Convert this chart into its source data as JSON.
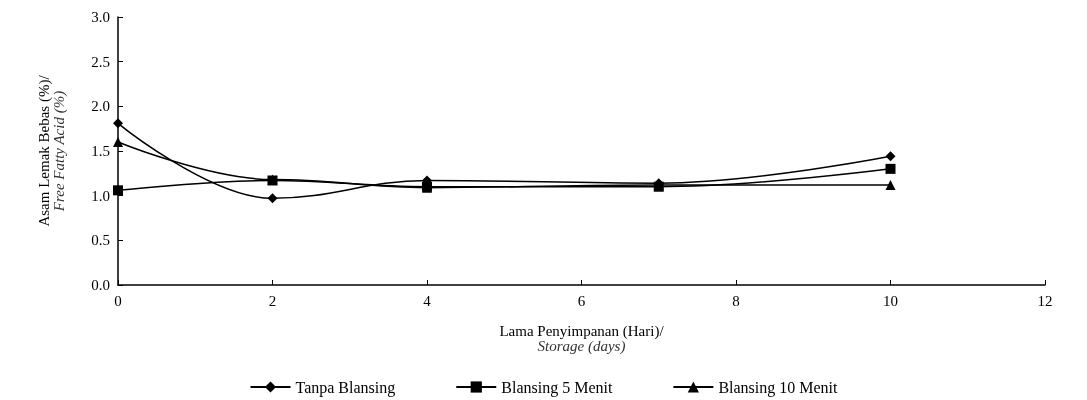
{
  "chart_data": {
    "type": "line",
    "xlabel": "Lama Penyimpanan (Hari)/\nStorage (days)",
    "ylabel": "Asam Lemak Bebas (%)/\nFree Fatty Acid (%)",
    "x": [
      0,
      2,
      4,
      7,
      10
    ],
    "series": [
      {
        "name": "Tanpa Blansing",
        "color": "#000000",
        "marker": "diamond",
        "values": [
          1.81,
          0.97,
          1.17,
          1.14,
          1.44
        ]
      },
      {
        "name": "Blansing 5 Menit",
        "color": "#000000",
        "marker": "square",
        "values": [
          1.06,
          1.17,
          1.1,
          1.1,
          1.3
        ]
      },
      {
        "name": "Blansing 10 Menit",
        "color": "#000000",
        "marker": "triangle",
        "values": [
          1.6,
          1.18,
          1.09,
          1.12,
          1.12
        ]
      }
    ],
    "xlim": [
      0,
      12
    ],
    "xticks": [
      0,
      2,
      4,
      6,
      8,
      10,
      12
    ],
    "ylim": [
      0,
      3
    ],
    "yticks": [
      {
        "value": 0,
        "label": "0.0"
      },
      {
        "value": 0.5,
        "label": "0.5"
      },
      {
        "value": 1,
        "label": "1.0"
      },
      {
        "value": 1.5,
        "label": "1.5"
      },
      {
        "value": 2,
        "label": "2.0"
      },
      {
        "value": 2.5,
        "label": "2.5"
      },
      {
        "value": 3,
        "label": "3.0"
      }
    ],
    "grid": false,
    "legend": "bottom",
    "line_style": "solid"
  }
}
